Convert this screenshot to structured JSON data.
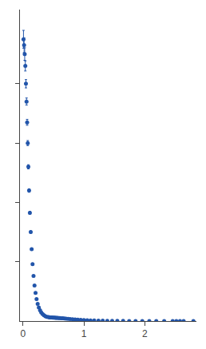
{
  "chart_data": {
    "type": "scatter",
    "marker": "circle",
    "color": "#2255aa",
    "grid": false,
    "tick_labels": "x",
    "xlim": [
      -0.05,
      2.85
    ],
    "ylim": [
      0,
      10.5
    ],
    "xticks": [
      0,
      1,
      2
    ],
    "yticks": [
      2,
      4,
      6,
      8
    ],
    "x": [
      0.008,
      0.018,
      0.028,
      0.038,
      0.048,
      0.058,
      0.068,
      0.078,
      0.088,
      0.1,
      0.113,
      0.127,
      0.142,
      0.157,
      0.173,
      0.189,
      0.206,
      0.223,
      0.241,
      0.26,
      0.28,
      0.3,
      0.322,
      0.345,
      0.368,
      0.392,
      0.415,
      0.43,
      0.445,
      0.46,
      0.475,
      0.49,
      0.505,
      0.52,
      0.535,
      0.55,
      0.567,
      0.585,
      0.605,
      0.628,
      0.652,
      0.678,
      0.706,
      0.74,
      0.775,
      0.815,
      0.856,
      0.9,
      0.948,
      1.0,
      1.055,
      1.11,
      1.17,
      1.24,
      1.31,
      1.385,
      1.465,
      1.55,
      1.645,
      1.745,
      1.85,
      1.96,
      2.075,
      2.19,
      2.32,
      2.46,
      2.52,
      2.58,
      2.64,
      2.8
    ],
    "values": [
      9.5,
      9.3,
      9.0,
      8.6,
      8.0,
      7.4,
      6.7,
      6.0,
      5.2,
      4.4,
      3.65,
      3.0,
      2.42,
      1.92,
      1.52,
      1.2,
      0.95,
      0.74,
      0.58,
      0.46,
      0.365,
      0.29,
      0.235,
      0.192,
      0.163,
      0.143,
      0.132,
      0.127,
      0.124,
      0.121,
      0.119,
      0.117,
      0.115,
      0.113,
      0.111,
      0.109,
      0.107,
      0.104,
      0.101,
      0.097,
      0.092,
      0.087,
      0.081,
      0.074,
      0.067,
      0.06,
      0.053,
      0.046,
      0.039,
      0.033,
      0.027,
      0.022,
      0.018,
      0.0145,
      0.0115,
      0.009,
      0.007,
      0.0054,
      0.0042,
      0.0032,
      0.0025,
      0.00195,
      0.00152,
      0.00118,
      0.00091,
      0.0007,
      0.00063,
      0.00057,
      0.00051,
      0.00038
    ],
    "errors": [
      0.3,
      0.25,
      0.21,
      0.17,
      0.14,
      0.12,
      0.1,
      0.085,
      0.07,
      0.058,
      0.047,
      0.038,
      0.03,
      0.024,
      0.019,
      0.015,
      0.012,
      0.0095,
      0.0075,
      0.006,
      0.005,
      0.0042,
      0.0035,
      0.003,
      0.0027,
      0.0025,
      0.0024,
      0.0023,
      0.0023,
      0.0022,
      0.0022,
      0.0021,
      0.0021,
      0.0021,
      0.002,
      0.002,
      0.002,
      0.002,
      0.0019,
      0.0019,
      0.0019,
      0.0018,
      0.0018,
      0.0017,
      0.0017,
      0.0016,
      0.0015,
      0.0014,
      0.0013,
      0.0012,
      0.0011,
      0.001,
      0.0009,
      0.0008,
      0.00072,
      0.00064,
      0.00057,
      0.0005,
      0.00044,
      0.00039,
      0.00034,
      0.0003,
      0.00026,
      0.00023,
      0.0002,
      0.00018,
      0.00017,
      0.00016,
      0.00016,
      0.00015
    ]
  }
}
